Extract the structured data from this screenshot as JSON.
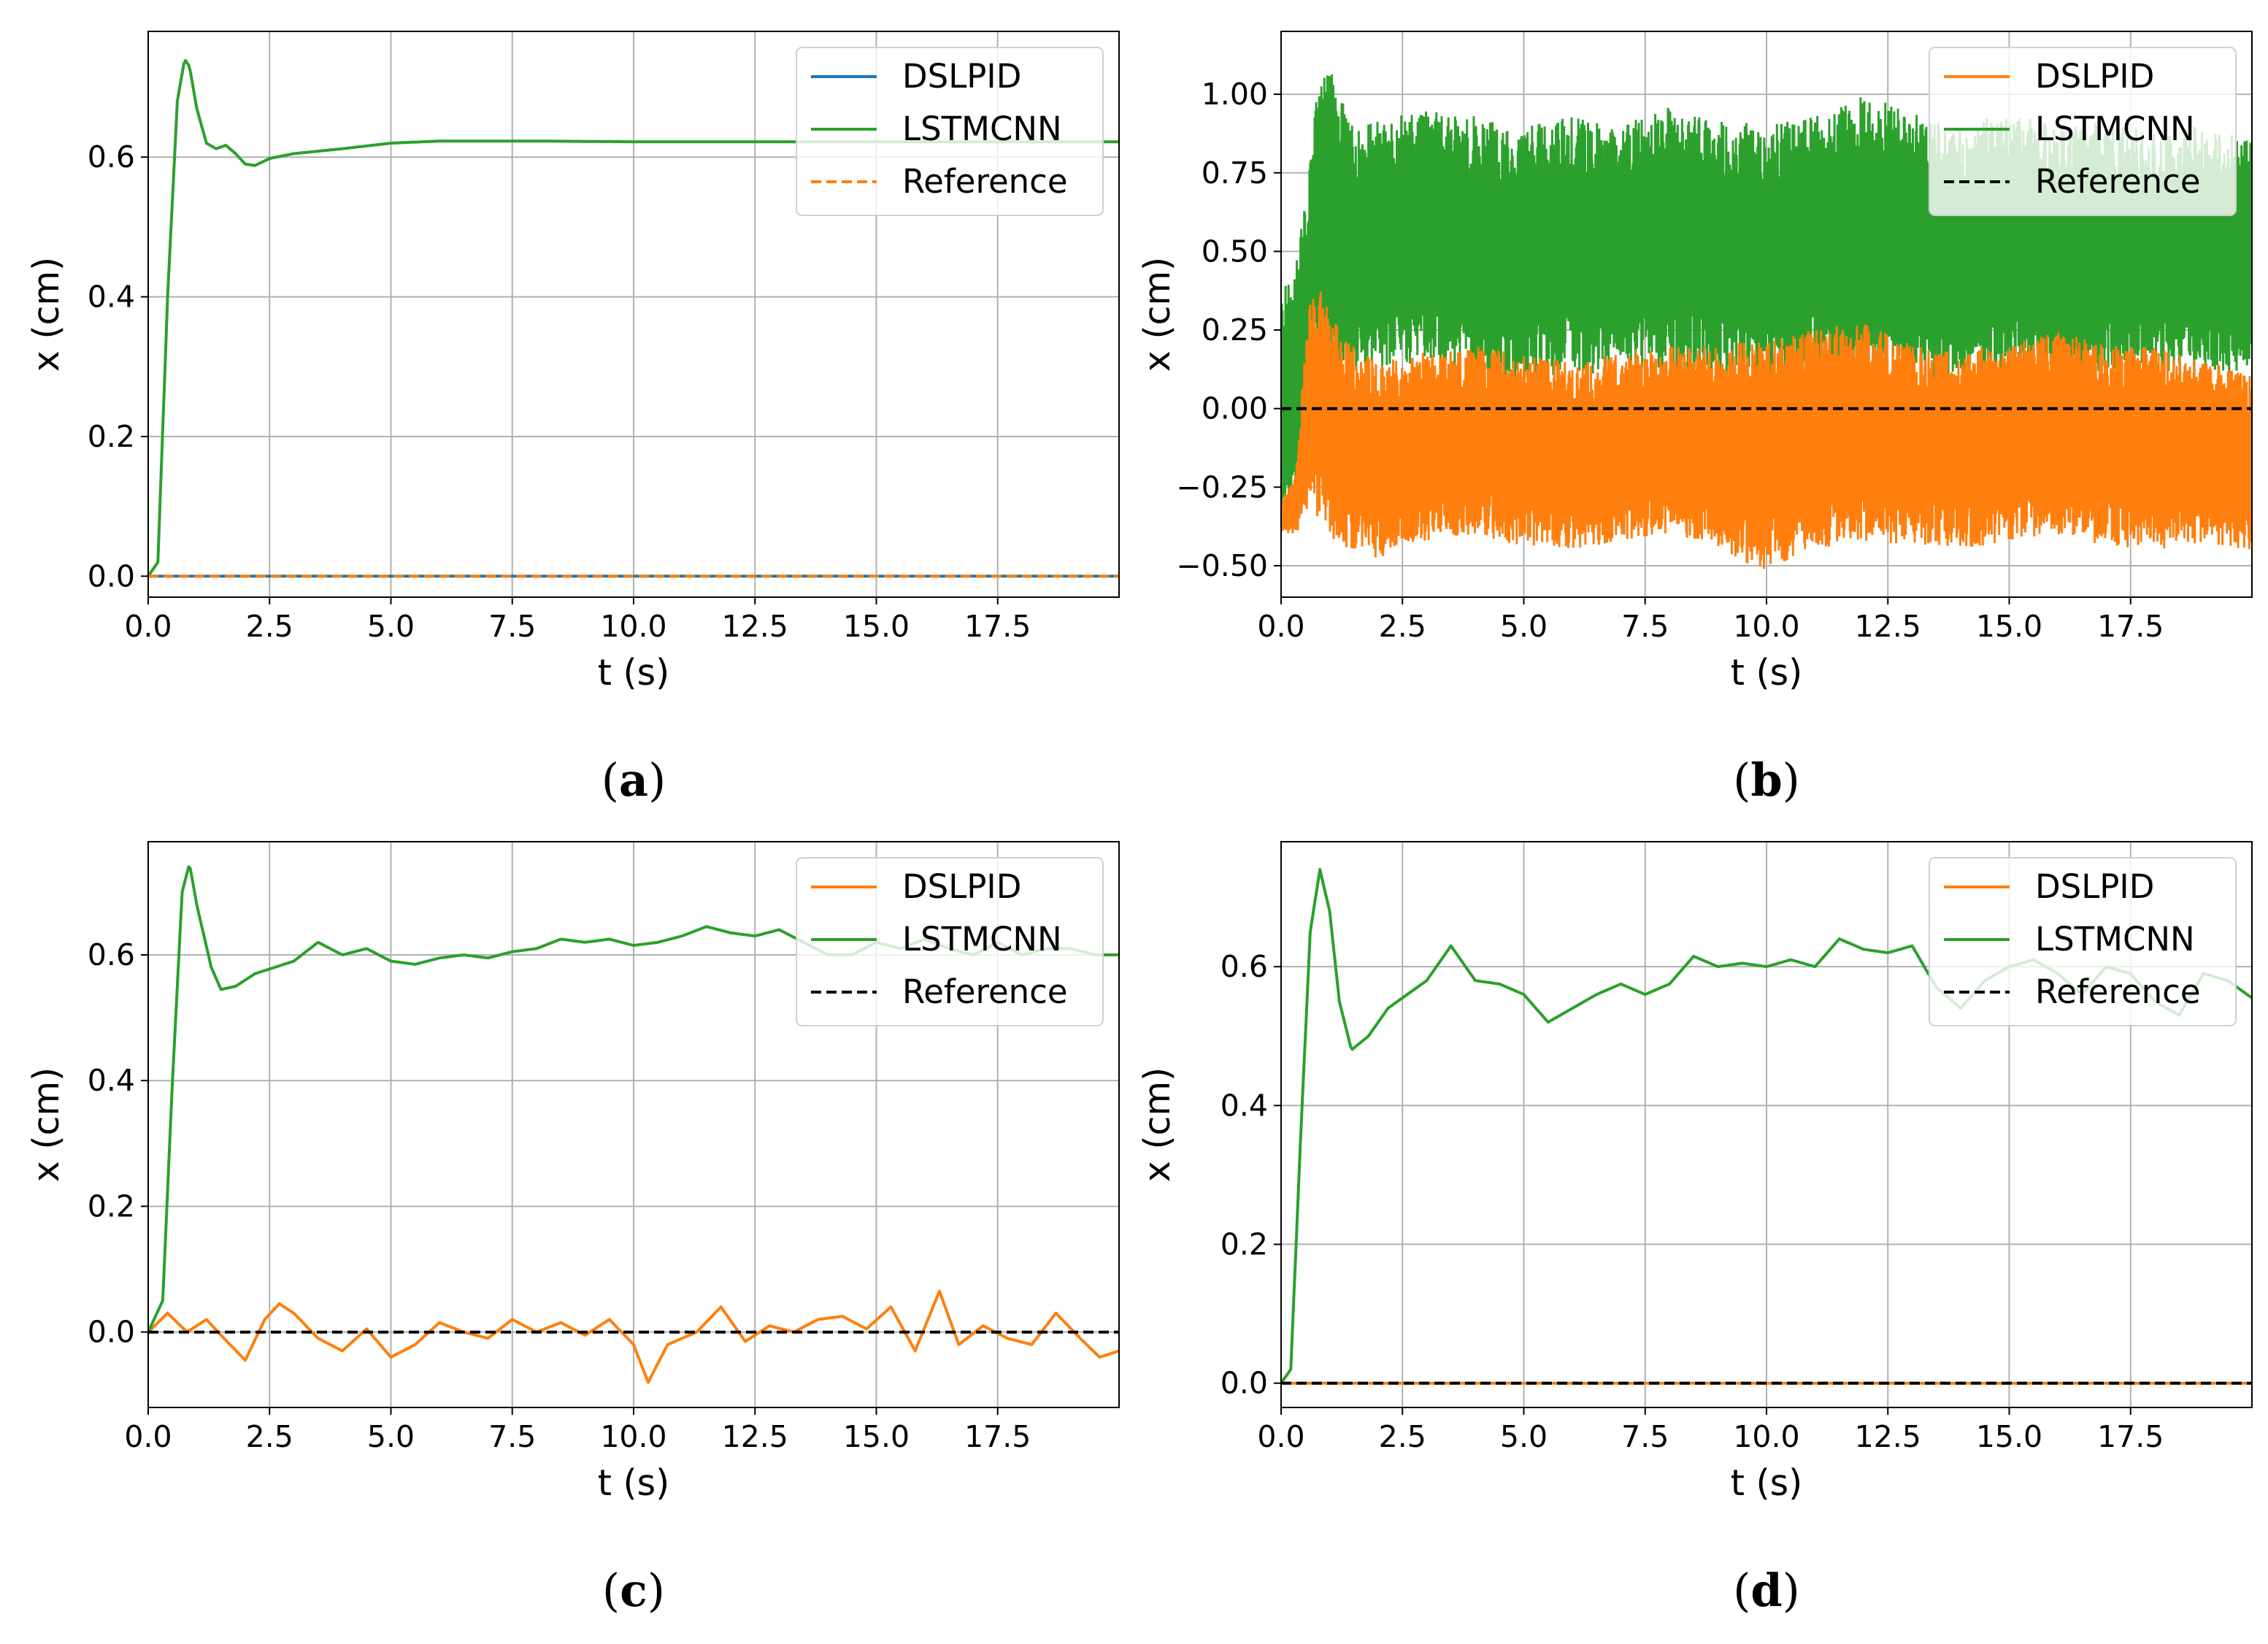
{
  "figure": {
    "xlabel": "t (s)",
    "ylabel": "x (cm)",
    "colors": {
      "dslpid_a": "#1f77b4",
      "dslpid": "#ff7f0e",
      "lstmcnn": "#2ca02c",
      "reference": "#000000",
      "reference_a": "#ff7f0e"
    }
  },
  "chart_data": [
    {
      "id": "a",
      "type": "line",
      "caption": "a",
      "xlabel": "t (s)",
      "ylabel": "x (cm)",
      "xlim": [
        0,
        20
      ],
      "ylim": [
        -0.03,
        0.78
      ],
      "xticks": [
        "0.0",
        "2.5",
        "5.0",
        "7.5",
        "10.0",
        "12.5",
        "15.0",
        "17.5"
      ],
      "yticks": [
        "0.0",
        "0.2",
        "0.4",
        "0.6"
      ],
      "legend": {
        "position": "top-right",
        "entries": [
          "DSLPID",
          "LSTMCNN",
          "Reference"
        ]
      },
      "series": [
        {
          "name": "DSLPID",
          "style": "solid",
          "color": "#1f77b4",
          "x": [
            0,
            20
          ],
          "y": [
            0,
            0
          ]
        },
        {
          "name": "LSTMCNN",
          "style": "solid",
          "color": "#2ca02c",
          "x": [
            0,
            0.2,
            0.4,
            0.6,
            0.75,
            0.85,
            1.0,
            1.2,
            1.4,
            1.6,
            1.8,
            2.0,
            2.2,
            2.5,
            3,
            4,
            5,
            6,
            7,
            8,
            10,
            12,
            15,
            20
          ],
          "y": [
            0,
            0.02,
            0.4,
            0.68,
            0.74,
            0.73,
            0.67,
            0.62,
            0.612,
            0.617,
            0.605,
            0.59,
            0.588,
            0.598,
            0.605,
            0.612,
            0.62,
            0.623,
            0.623,
            0.623,
            0.622,
            0.622,
            0.622,
            0.622
          ]
        },
        {
          "name": "Reference",
          "style": "dashed",
          "color": "#ff7f0e",
          "x": [
            0,
            20
          ],
          "y": [
            0,
            0
          ]
        }
      ]
    },
    {
      "id": "b",
      "type": "line",
      "caption": "b",
      "xlabel": "t (s)",
      "ylabel": "x (cm)",
      "xlim": [
        0,
        20
      ],
      "ylim": [
        -0.6,
        1.2
      ],
      "xticks": [
        "0.0",
        "2.5",
        "5.0",
        "7.5",
        "10.0",
        "12.5",
        "15.0",
        "17.5"
      ],
      "yticks": [
        "−0.50",
        "−0.25",
        "0.00",
        "0.25",
        "0.50",
        "0.75",
        "1.00"
      ],
      "legend": {
        "position": "top-right",
        "entries": [
          "DSLPID",
          "LSTMCNN",
          "Reference"
        ]
      },
      "series": [
        {
          "name": "LSTMCNN",
          "style": "band",
          "color": "#2ca02c",
          "x": [
            0,
            0.3,
            0.6,
            0.8,
            1.0,
            1.5,
            2.0,
            3,
            4,
            5,
            6,
            7,
            8,
            9,
            10,
            11,
            12,
            13,
            14,
            15,
            16,
            17,
            18,
            19,
            20
          ],
          "upper": [
            0.38,
            0.45,
            0.8,
            1.12,
            1.08,
            0.9,
            0.92,
            0.95,
            0.93,
            0.9,
            0.93,
            0.9,
            0.96,
            0.92,
            0.9,
            0.93,
            1.0,
            0.95,
            0.9,
            0.95,
            0.9,
            0.92,
            0.88,
            0.9,
            0.85
          ],
          "lower": [
            -0.4,
            -0.35,
            0.0,
            0.2,
            0.1,
            0.1,
            0.12,
            0.15,
            0.1,
            0.08,
            0.12,
            0.1,
            0.12,
            0.1,
            0.08,
            0.1,
            0.12,
            0.1,
            0.08,
            0.12,
            0.1,
            0.1,
            0.1,
            0.12,
            0.1
          ]
        },
        {
          "name": "DSLPID",
          "style": "band",
          "color": "#ff7f0e",
          "x": [
            0,
            0.3,
            0.5,
            0.6,
            0.8,
            1.0,
            1.5,
            2.0,
            3,
            4,
            5,
            6,
            7,
            8,
            9,
            10,
            11,
            12,
            13,
            14,
            15,
            16,
            17,
            18,
            19,
            20
          ],
          "upper": [
            -0.3,
            -0.2,
            0.2,
            0.35,
            0.38,
            0.3,
            0.2,
            0.15,
            0.18,
            0.2,
            0.17,
            0.15,
            0.18,
            0.2,
            0.2,
            0.22,
            0.25,
            0.28,
            0.2,
            0.18,
            0.22,
            0.25,
            0.2,
            0.2,
            0.15,
            0.12
          ],
          "lower": [
            -0.4,
            -0.4,
            -0.35,
            -0.3,
            -0.38,
            -0.42,
            -0.45,
            -0.48,
            -0.42,
            -0.4,
            -0.44,
            -0.45,
            -0.42,
            -0.4,
            -0.45,
            -0.52,
            -0.45,
            -0.42,
            -0.44,
            -0.45,
            -0.42,
            -0.4,
            -0.44,
            -0.45,
            -0.43,
            -0.46
          ]
        },
        {
          "name": "Reference",
          "style": "dashed",
          "color": "#000000",
          "x": [
            0,
            20
          ],
          "y": [
            0,
            0
          ]
        }
      ]
    },
    {
      "id": "c",
      "type": "line",
      "caption": "c",
      "xlabel": "t (s)",
      "ylabel": "x (cm)",
      "xlim": [
        0,
        20
      ],
      "ylim": [
        -0.12,
        0.78
      ],
      "xticks": [
        "0.0",
        "2.5",
        "5.0",
        "7.5",
        "10.0",
        "12.5",
        "15.0",
        "17.5"
      ],
      "yticks": [
        "0.0",
        "0.2",
        "0.4",
        "0.6"
      ],
      "legend": {
        "position": "top-right",
        "entries": [
          "DSLPID",
          "LSTMCNN",
          "Reference"
        ]
      },
      "series": [
        {
          "name": "DSLPID",
          "style": "solid",
          "color": "#ff7f0e",
          "x": [
            0,
            0.4,
            0.8,
            1.2,
            1.5,
            2.0,
            2.4,
            2.7,
            3.0,
            3.5,
            4.0,
            4.5,
            5.0,
            5.5,
            6.0,
            6.5,
            7.0,
            7.5,
            8.0,
            8.5,
            9.0,
            9.5,
            10.0,
            10.3,
            10.7,
            11.3,
            11.8,
            12.3,
            12.8,
            13.3,
            13.8,
            14.3,
            14.8,
            15.3,
            15.8,
            16.3,
            16.7,
            17.2,
            17.7,
            18.2,
            18.7,
            19.2,
            19.6,
            20
          ],
          "y": [
            0,
            0.03,
            0.0,
            0.02,
            -0.005,
            -0.045,
            0.02,
            0.045,
            0.03,
            -0.01,
            -0.03,
            0.005,
            -0.04,
            -0.02,
            0.015,
            0.0,
            -0.01,
            0.02,
            0.0,
            0.015,
            -0.005,
            0.02,
            -0.02,
            -0.08,
            -0.02,
            0.0,
            0.04,
            -0.015,
            0.01,
            0.0,
            0.02,
            0.025,
            0.005,
            0.04,
            -0.03,
            0.065,
            -0.02,
            0.01,
            -0.01,
            -0.02,
            0.03,
            -0.01,
            -0.04,
            -0.03
          ]
        },
        {
          "name": "LSTMCNN",
          "style": "solid",
          "color": "#2ca02c",
          "x": [
            0,
            0.3,
            0.5,
            0.7,
            0.85,
            1.0,
            1.3,
            1.5,
            1.8,
            2.2,
            2.6,
            3.0,
            3.5,
            4.0,
            4.5,
            5.0,
            5.5,
            6.0,
            6.5,
            7.0,
            7.5,
            8.0,
            8.5,
            9.0,
            9.5,
            10.0,
            10.5,
            11.0,
            11.5,
            12.0,
            12.5,
            13.0,
            13.5,
            14.0,
            14.5,
            15.0,
            15.5,
            16.0,
            16.5,
            17.0,
            17.5,
            18.0,
            18.5,
            19.0,
            19.5,
            20
          ],
          "y": [
            0,
            0.05,
            0.4,
            0.7,
            0.745,
            0.68,
            0.58,
            0.545,
            0.55,
            0.57,
            0.58,
            0.59,
            0.62,
            0.6,
            0.61,
            0.59,
            0.585,
            0.595,
            0.6,
            0.595,
            0.605,
            0.61,
            0.625,
            0.62,
            0.625,
            0.615,
            0.62,
            0.63,
            0.645,
            0.635,
            0.63,
            0.64,
            0.62,
            0.6,
            0.6,
            0.62,
            0.61,
            0.625,
            0.61,
            0.6,
            0.62,
            0.6,
            0.61,
            0.61,
            0.6,
            0.6
          ]
        },
        {
          "name": "Reference",
          "style": "dashed",
          "color": "#000000",
          "x": [
            0,
            20
          ],
          "y": [
            0,
            0
          ]
        }
      ]
    },
    {
      "id": "d",
      "type": "line",
      "caption": "d",
      "xlabel": "t (s)",
      "ylabel": "x (cm)",
      "xlim": [
        0,
        20
      ],
      "ylim": [
        -0.035,
        0.78
      ],
      "xticks": [
        "0.0",
        "2.5",
        "5.0",
        "7.5",
        "10.0",
        "12.5",
        "15.0",
        "17.5"
      ],
      "yticks": [
        "0.0",
        "0.2",
        "0.4",
        "0.6"
      ],
      "legend": {
        "position": "top-right",
        "entries": [
          "DSLPID",
          "LSTMCNN",
          "Reference"
        ]
      },
      "series": [
        {
          "name": "DSLPID",
          "style": "solid",
          "color": "#ff7f0e",
          "x": [
            0,
            20
          ],
          "y": [
            0,
            0
          ]
        },
        {
          "name": "LSTMCNN",
          "style": "solid",
          "color": "#2ca02c",
          "x": [
            0,
            0.2,
            0.4,
            0.6,
            0.8,
            1.0,
            1.2,
            1.45,
            1.8,
            2.2,
            2.5,
            3.0,
            3.5,
            4.0,
            4.5,
            5.0,
            5.5,
            6.0,
            6.5,
            7.0,
            7.5,
            8.0,
            8.5,
            9.0,
            9.5,
            10.0,
            10.5,
            11.0,
            11.5,
            12.0,
            12.5,
            13.0,
            13.5,
            14.0,
            14.5,
            15.0,
            15.5,
            16.0,
            16.5,
            17.0,
            17.5,
            18.0,
            18.5,
            19.0,
            19.5,
            20
          ],
          "y": [
            0,
            0.02,
            0.35,
            0.65,
            0.74,
            0.68,
            0.55,
            0.48,
            0.5,
            0.54,
            0.555,
            0.58,
            0.63,
            0.58,
            0.575,
            0.56,
            0.52,
            0.54,
            0.56,
            0.575,
            0.56,
            0.575,
            0.615,
            0.6,
            0.605,
            0.6,
            0.61,
            0.6,
            0.64,
            0.625,
            0.62,
            0.63,
            0.57,
            0.54,
            0.58,
            0.6,
            0.61,
            0.59,
            0.56,
            0.6,
            0.59,
            0.55,
            0.53,
            0.59,
            0.58,
            0.555
          ]
        },
        {
          "name": "Reference",
          "style": "dashed",
          "color": "#000000",
          "x": [
            0,
            20
          ],
          "y": [
            0,
            0
          ]
        }
      ]
    }
  ]
}
